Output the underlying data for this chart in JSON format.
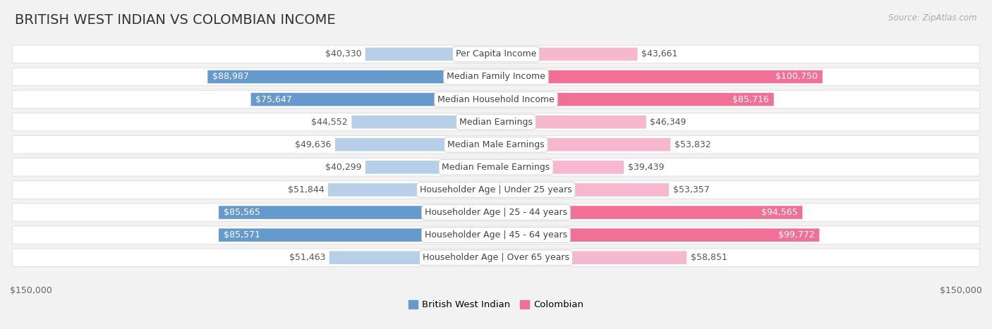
{
  "title": "BRITISH WEST INDIAN VS COLOMBIAN INCOME",
  "source": "Source: ZipAtlas.com",
  "categories": [
    "Per Capita Income",
    "Median Family Income",
    "Median Household Income",
    "Median Earnings",
    "Median Male Earnings",
    "Median Female Earnings",
    "Householder Age | Under 25 years",
    "Householder Age | 25 - 44 years",
    "Householder Age | 45 - 64 years",
    "Householder Age | Over 65 years"
  ],
  "british_values": [
    40330,
    88987,
    75647,
    44552,
    49636,
    40299,
    51844,
    85565,
    85571,
    51463
  ],
  "colombian_values": [
    43661,
    100750,
    85716,
    46349,
    53832,
    39439,
    53357,
    94565,
    99772,
    58851
  ],
  "british_labels": [
    "$40,330",
    "$88,987",
    "$75,647",
    "$44,552",
    "$49,636",
    "$40,299",
    "$51,844",
    "$85,565",
    "$85,571",
    "$51,463"
  ],
  "colombian_labels": [
    "$43,661",
    "$100,750",
    "$85,716",
    "$46,349",
    "$53,832",
    "$39,439",
    "$53,357",
    "$94,565",
    "$99,772",
    "$58,851"
  ],
  "british_color_light": "#b8cfe8",
  "british_color_dark": "#6699cc",
  "colombian_color_light": "#f5b8cf",
  "colombian_color_dark": "#f07098",
  "max_value": 150000,
  "x_label_left": "$150,000",
  "x_label_right": "$150,000",
  "legend_british": "British West Indian",
  "legend_colombian": "Colombian",
  "background_color": "#f2f2f2",
  "row_background": "#ffffff",
  "title_fontsize": 14,
  "label_fontsize": 9,
  "category_fontsize": 9,
  "large_threshold_british": 70000,
  "large_threshold_colombian": 80000
}
